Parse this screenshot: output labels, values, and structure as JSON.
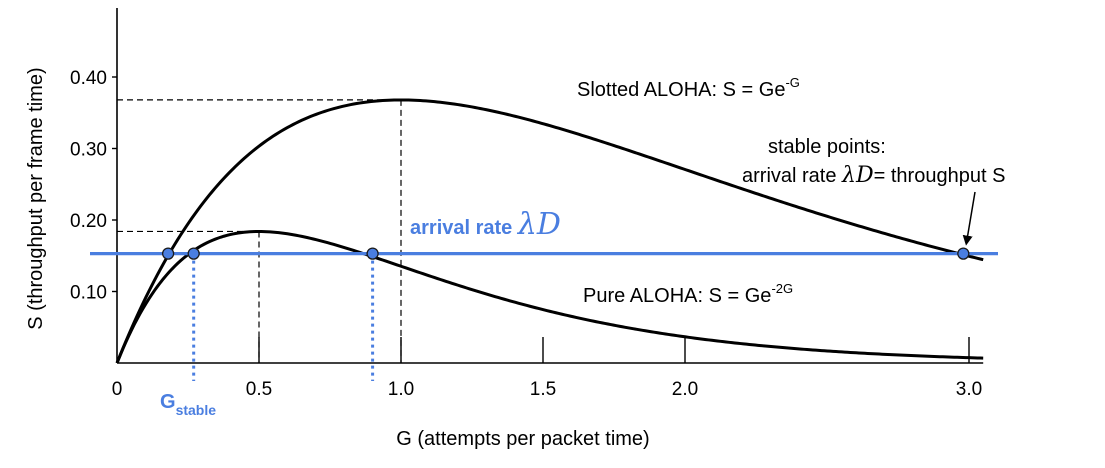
{
  "chart_data": {
    "type": "line",
    "xlabel": "G (attempts per packet time)",
    "ylabel": "S (throughput per frame time)",
    "xlim": [
      0,
      3.05
    ],
    "ylim": [
      0,
      0.46
    ],
    "x_ticks": [
      {
        "value": 0,
        "label": "0"
      },
      {
        "value": 0.5,
        "label": "0.5"
      },
      {
        "value": 1.0,
        "label": "1.0"
      },
      {
        "value": 1.5,
        "label": "1.5"
      },
      {
        "value": 2.0,
        "label": "2.0"
      },
      {
        "value": 3.0,
        "label": "3.0"
      }
    ],
    "y_ticks": [
      {
        "value": 0.1,
        "label": "0.10"
      },
      {
        "value": 0.2,
        "label": "0.20"
      },
      {
        "value": 0.3,
        "label": "0.30"
      },
      {
        "value": 0.4,
        "label": "0.40"
      }
    ],
    "series": [
      {
        "label": {
          "prefix": "Slotted ALOHA: S = Ge",
          "sup": "-G"
        },
        "formula_coefficient": 1,
        "x": [
          0,
          0.1,
          0.2,
          0.3,
          0.4,
          0.5,
          0.6,
          0.7,
          0.8,
          0.9,
          1.0,
          1.2,
          1.4,
          1.6,
          1.8,
          2.0,
          2.2,
          2.4,
          2.6,
          2.8,
          3.0
        ],
        "values": [
          0,
          0.09,
          0.164,
          0.222,
          0.268,
          0.303,
          0.329,
          0.348,
          0.359,
          0.366,
          0.368,
          0.361,
          0.345,
          0.323,
          0.298,
          0.271,
          0.244,
          0.218,
          0.193,
          0.171,
          0.149
        ],
        "color": "#000000"
      },
      {
        "label": {
          "prefix": "Pure ALOHA: S = Ge",
          "sup": "-2G"
        },
        "formula_coefficient": 2,
        "x": [
          0,
          0.1,
          0.2,
          0.3,
          0.4,
          0.5,
          0.6,
          0.7,
          0.8,
          0.9,
          1.0,
          1.2,
          1.4,
          1.6,
          1.8,
          2.0,
          2.2,
          2.4,
          2.6,
          2.8,
          3.0
        ],
        "values": [
          0,
          0.082,
          0.134,
          0.165,
          0.18,
          0.184,
          0.181,
          0.173,
          0.162,
          0.149,
          0.135,
          0.109,
          0.085,
          0.065,
          0.049,
          0.037,
          0.027,
          0.02,
          0.014,
          0.01,
          0.007
        ],
        "color": "#000000"
      }
    ],
    "arrival_rate": {
      "value": 0.153,
      "label_text": "arrival rate",
      "label_math": "λD",
      "color": "#4a7ee0"
    },
    "intersections": [
      {
        "series": 0,
        "x": 0.18,
        "y": 0.153
      },
      {
        "series": 1,
        "x": 0.27,
        "y": 0.153
      },
      {
        "series": 1,
        "x": 0.9,
        "y": 0.153
      },
      {
        "series": 0,
        "x": 2.98,
        "y": 0.153
      }
    ],
    "stable_guides": [
      0.27,
      0.9
    ],
    "g_stable_label": {
      "main": "G",
      "sub": "stable"
    },
    "peak_guides": [
      {
        "x": 0.5,
        "y": 0.184
      },
      {
        "x": 1.0,
        "y": 0.368
      }
    ],
    "annotation": {
      "line1": "stable points:",
      "line2_prefix": "arrival rate",
      "line2_math": "λD",
      "line2_suffix": "= throughput S"
    }
  }
}
